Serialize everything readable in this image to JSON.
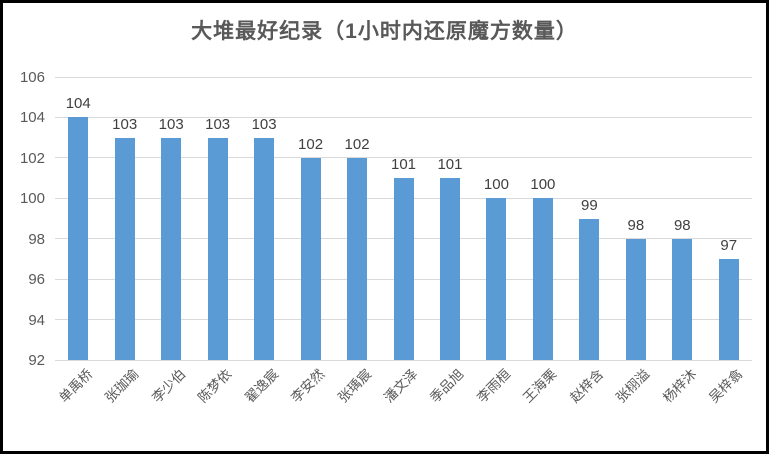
{
  "frame": {
    "background_color": "#ffffff",
    "border_color": "#000000"
  },
  "chart_data": {
    "type": "bar",
    "title": "大堆最好纪录（1小时内还原魔方数量）",
    "categories": [
      "单禹桥",
      "张珈瑜",
      "李少伯",
      "陈梦依",
      "翟逸宸",
      "李安然",
      "张瑀宸",
      "潘文泽",
      "季品旭",
      "李雨桓",
      "王海栗",
      "赵梓含",
      "张栩溢",
      "杨梓沐",
      "吴梓翕"
    ],
    "values": [
      104,
      103,
      103,
      103,
      103,
      102,
      102,
      101,
      101,
      100,
      100,
      99,
      98,
      98,
      97
    ],
    "xlabel": "",
    "ylabel": "",
    "ylim": [
      92,
      106
    ],
    "ytick_step": 2,
    "yticks": [
      92,
      94,
      96,
      98,
      100,
      102,
      104,
      106
    ],
    "grid": true,
    "legend_position": "none",
    "data_labels": true,
    "x_label_rotation_deg": -45,
    "colors": {
      "bar": "#5b9bd5",
      "gridline": "#d9d9d9",
      "axis_text": "#595959",
      "data_label": "#404040",
      "title_text": "#595959"
    }
  }
}
